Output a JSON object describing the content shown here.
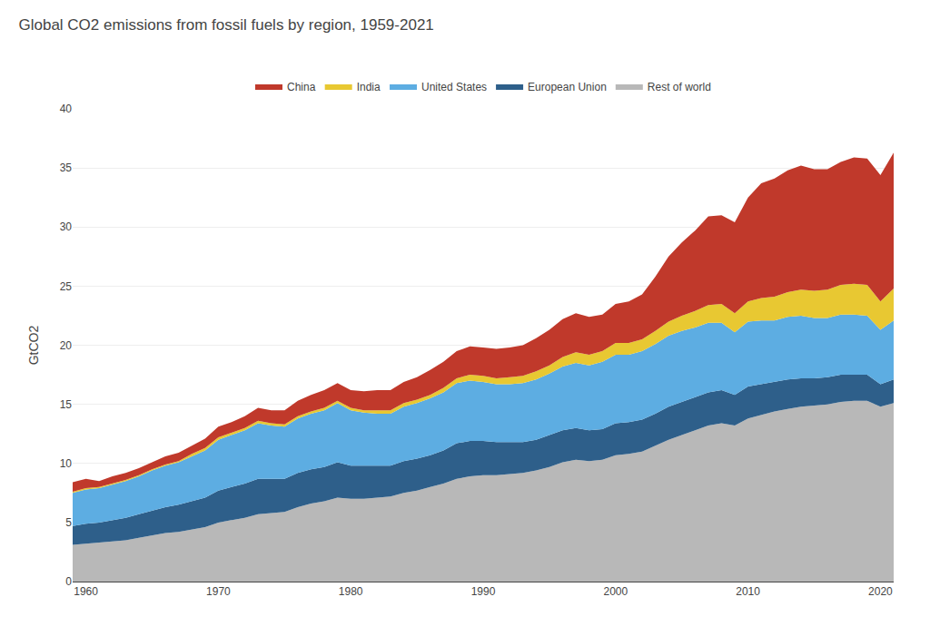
{
  "chart_data": {
    "type": "area",
    "stacked": true,
    "title": "Global CO2 emissions from fossil fuels by region, 1959-2021",
    "ylabel": "GtCO2",
    "grid": true,
    "legend": "top",
    "x": [
      1959,
      1960,
      1961,
      1962,
      1963,
      1964,
      1965,
      1966,
      1967,
      1968,
      1969,
      1970,
      1971,
      1972,
      1973,
      1974,
      1975,
      1976,
      1977,
      1978,
      1979,
      1980,
      1981,
      1982,
      1983,
      1984,
      1985,
      1986,
      1987,
      1988,
      1989,
      1990,
      1991,
      1992,
      1993,
      1994,
      1995,
      1996,
      1997,
      1998,
      1999,
      2000,
      2001,
      2002,
      2003,
      2004,
      2005,
      2006,
      2007,
      2008,
      2009,
      2010,
      2011,
      2012,
      2013,
      2014,
      2015,
      2016,
      2017,
      2018,
      2019,
      2020,
      2021
    ],
    "series": [
      {
        "name": "Rest of world",
        "color": "#b8b8b8",
        "values": [
          3.1,
          3.2,
          3.3,
          3.4,
          3.5,
          3.7,
          3.9,
          4.1,
          4.2,
          4.4,
          4.6,
          5.0,
          5.2,
          5.4,
          5.7,
          5.8,
          5.9,
          6.3,
          6.6,
          6.8,
          7.1,
          7.0,
          7.0,
          7.1,
          7.2,
          7.5,
          7.7,
          8.0,
          8.3,
          8.7,
          8.9,
          9.0,
          9.0,
          9.1,
          9.2,
          9.4,
          9.7,
          10.1,
          10.3,
          10.2,
          10.3,
          10.7,
          10.8,
          11.0,
          11.5,
          12.0,
          12.4,
          12.8,
          13.2,
          13.4,
          13.2,
          13.8,
          14.1,
          14.4,
          14.6,
          14.8,
          14.9,
          15.0,
          15.2,
          15.3,
          15.3,
          14.8,
          15.1
        ]
      },
      {
        "name": "European Union",
        "color": "#2e5f8a",
        "values": [
          1.6,
          1.7,
          1.7,
          1.8,
          1.9,
          2.0,
          2.1,
          2.2,
          2.3,
          2.4,
          2.5,
          2.7,
          2.8,
          2.9,
          3.0,
          2.9,
          2.8,
          2.9,
          2.9,
          2.9,
          3.0,
          2.8,
          2.8,
          2.7,
          2.6,
          2.7,
          2.7,
          2.7,
          2.8,
          3.0,
          3.0,
          2.9,
          2.8,
          2.7,
          2.6,
          2.6,
          2.7,
          2.7,
          2.7,
          2.6,
          2.6,
          2.7,
          2.7,
          2.7,
          2.7,
          2.8,
          2.8,
          2.8,
          2.8,
          2.8,
          2.6,
          2.7,
          2.6,
          2.5,
          2.5,
          2.4,
          2.3,
          2.3,
          2.3,
          2.2,
          2.2,
          1.9,
          2.0
        ]
      },
      {
        "name": "United States",
        "color": "#5dade2",
        "values": [
          2.8,
          2.9,
          2.9,
          3.0,
          3.1,
          3.2,
          3.4,
          3.5,
          3.6,
          3.8,
          4.0,
          4.3,
          4.4,
          4.5,
          4.7,
          4.5,
          4.4,
          4.6,
          4.7,
          4.8,
          5.0,
          4.7,
          4.5,
          4.4,
          4.4,
          4.6,
          4.7,
          4.8,
          4.9,
          5.1,
          5.1,
          5.0,
          4.9,
          4.9,
          5.0,
          5.1,
          5.2,
          5.4,
          5.5,
          5.5,
          5.7,
          5.8,
          5.7,
          5.8,
          5.9,
          6.0,
          6.0,
          5.9,
          5.9,
          5.7,
          5.3,
          5.5,
          5.4,
          5.2,
          5.3,
          5.3,
          5.1,
          5.0,
          5.1,
          5.1,
          5.0,
          4.6,
          5.0
        ]
      },
      {
        "name": "India",
        "color": "#e8c832",
        "values": [
          0.1,
          0.1,
          0.1,
          0.1,
          0.1,
          0.1,
          0.1,
          0.1,
          0.1,
          0.2,
          0.2,
          0.2,
          0.2,
          0.2,
          0.2,
          0.2,
          0.2,
          0.2,
          0.2,
          0.2,
          0.2,
          0.2,
          0.2,
          0.3,
          0.3,
          0.3,
          0.3,
          0.3,
          0.4,
          0.4,
          0.5,
          0.5,
          0.5,
          0.6,
          0.6,
          0.7,
          0.7,
          0.8,
          0.9,
          0.9,
          0.9,
          1.0,
          1.0,
          1.0,
          1.1,
          1.2,
          1.3,
          1.4,
          1.5,
          1.6,
          1.6,
          1.7,
          1.9,
          2.0,
          2.1,
          2.2,
          2.3,
          2.4,
          2.5,
          2.6,
          2.6,
          2.4,
          2.7
        ]
      },
      {
        "name": "China",
        "color": "#c0392b",
        "values": [
          0.8,
          0.8,
          0.5,
          0.6,
          0.6,
          0.6,
          0.6,
          0.7,
          0.7,
          0.7,
          0.8,
          0.9,
          0.9,
          1.0,
          1.1,
          1.1,
          1.2,
          1.3,
          1.4,
          1.5,
          1.5,
          1.5,
          1.6,
          1.7,
          1.7,
          1.8,
          1.9,
          2.1,
          2.2,
          2.3,
          2.4,
          2.4,
          2.5,
          2.5,
          2.6,
          2.8,
          3.0,
          3.2,
          3.3,
          3.2,
          3.1,
          3.3,
          3.5,
          3.8,
          4.6,
          5.5,
          6.2,
          6.8,
          7.5,
          7.5,
          7.7,
          8.8,
          9.7,
          10.0,
          10.3,
          10.5,
          10.3,
          10.2,
          10.4,
          10.7,
          10.7,
          10.7,
          11.5
        ]
      }
    ],
    "xlim": [
      1959,
      2021
    ],
    "xticks": [
      1960,
      1970,
      1980,
      1990,
      2000,
      2010,
      2020
    ],
    "ylim": [
      0,
      40
    ],
    "yticks": [
      0,
      5,
      10,
      15,
      20,
      25,
      30,
      35,
      40
    ]
  }
}
